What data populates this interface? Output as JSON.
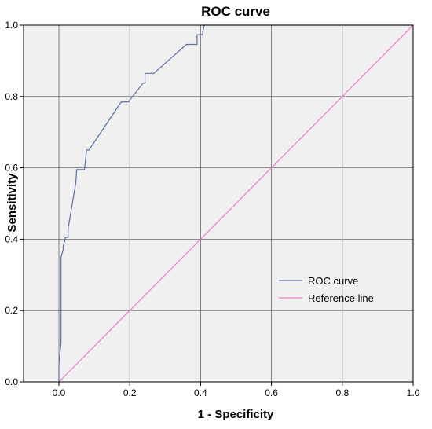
{
  "chart_data": {
    "type": "line",
    "title": "ROC curve",
    "xlabel": "1 - Specificity",
    "ylabel": "Sensitivity",
    "xlim": [
      0,
      1
    ],
    "ylim": [
      0,
      1
    ],
    "xticks": [
      "0.0",
      "0.2",
      "0.4",
      "0.6",
      "0.8",
      "1.0"
    ],
    "yticks": [
      "0.0",
      "0.2",
      "0.4",
      "0.6",
      "0.8",
      "1.0"
    ],
    "grid": true,
    "background": "#f0f0f0",
    "legend_position": "bottom-right",
    "series": [
      {
        "name": "ROC curve",
        "color": "#5b6fa8",
        "x": [
          0.0,
          0.0,
          0.006,
          0.006,
          0.012,
          0.012,
          0.018,
          0.018,
          0.026,
          0.026,
          0.048,
          0.05,
          0.072,
          0.075,
          0.078,
          0.085,
          0.176,
          0.196,
          0.238,
          0.243,
          0.243,
          0.268,
          0.36,
          0.39,
          0.39,
          0.405,
          0.41,
          0.42,
          0.43,
          0.44,
          0.45,
          0.46,
          0.47,
          0.48,
          0.49,
          0.5,
          0.51,
          0.52,
          0.53,
          0.54,
          0.55,
          0.56,
          0.57,
          0.58,
          0.59,
          0.6,
          0.62,
          0.65,
          0.7,
          0.75,
          0.8,
          0.85,
          0.9,
          0.95,
          1.0
        ],
        "y": [
          0.0,
          0.05,
          0.11,
          0.35,
          0.37,
          0.38,
          0.4,
          0.405,
          0.405,
          0.43,
          0.56,
          0.595,
          0.595,
          0.62,
          0.65,
          0.65,
          0.785,
          0.785,
          0.838,
          0.838,
          0.865,
          0.865,
          0.946,
          0.946,
          0.973,
          0.973,
          1.0,
          1.0,
          1.0,
          1.0,
          1.0,
          1.0,
          1.0,
          1.0,
          1.0,
          1.0,
          1.0,
          1.0,
          1.0,
          1.0,
          1.0,
          1.0,
          1.0,
          1.0,
          1.0,
          1.0,
          1.0,
          1.0,
          1.0,
          1.0,
          1.0,
          1.0,
          1.0,
          1.0,
          1.0
        ]
      },
      {
        "name": "Reference line",
        "color": "#ee7ec8",
        "x": [
          0,
          1
        ],
        "y": [
          0,
          1
        ]
      }
    ]
  }
}
